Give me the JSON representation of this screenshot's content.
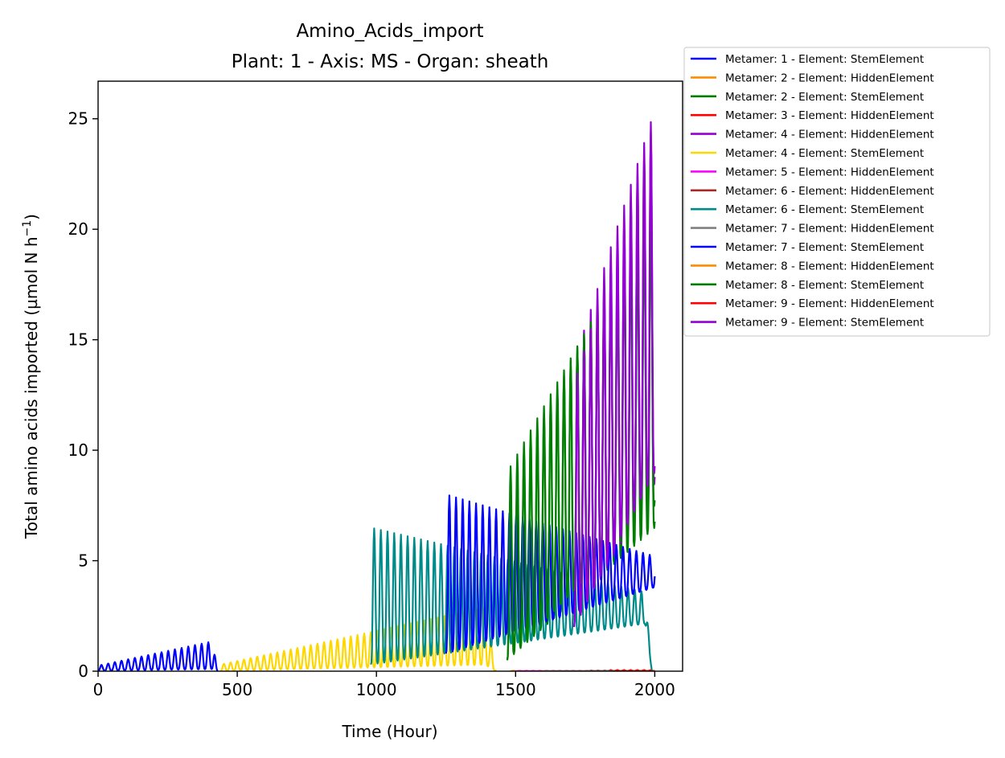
{
  "chart_data": {
    "type": "line",
    "title": "Amino_Acids_import",
    "subtitle": "Plant: 1 - Axis: MS - Organ: sheath",
    "xlabel": "Time (Hour)",
    "ylabel": "Total amino acids imported (µmol N h",
    "ylabel_sup": "−1",
    "ylabel_end": ")",
    "xlim": [
      0,
      2100
    ],
    "ylim": [
      0,
      26.7
    ],
    "xticks": [
      0,
      500,
      1000,
      1500,
      2000
    ],
    "yticks": [
      0,
      5,
      10,
      15,
      20,
      25
    ],
    "grid": false,
    "legend_position": "outside-top-right",
    "series": [
      {
        "name": "Metamer: 1 - Element: StemElement",
        "color": "#0000ff",
        "start": 0,
        "end": 430,
        "peak_start": 0.25,
        "peak_end": 1.4,
        "trough_start": 0.02,
        "trough_end": 0.1,
        "fade": 20
      },
      {
        "name": "Metamer: 2 - Element: HiddenElement",
        "color": "#ff8c00",
        "start": 1480,
        "end": 2000,
        "peak_start": 0.02,
        "peak_end": 0.02,
        "trough_start": 0,
        "trough_end": 0,
        "fade": 0
      },
      {
        "name": "Metamer: 2 - Element: StemElement",
        "color": "#008000",
        "start": 1470,
        "end": 2000,
        "peak_start": 8,
        "peak_end": 22,
        "trough_start": 0.5,
        "trough_end": 6.5,
        "fade": 0
      },
      {
        "name": "Metamer: 3 - Element: HiddenElement",
        "color": "#ff0000",
        "start": 1830,
        "end": 2000,
        "peak_start": 0.05,
        "peak_end": 0.05,
        "trough_start": 0,
        "trough_end": 0,
        "fade": 0
      },
      {
        "name": "Metamer: 4 - Element: HiddenElement",
        "color": "#9400d3",
        "start": 1710,
        "end": 2000,
        "peak_start": 14,
        "peak_end": 25.4,
        "trough_start": 2,
        "trough_end": 8.5,
        "fade": 0
      },
      {
        "name": "Metamer: 4 - Element: StemElement",
        "color": "#ffd700",
        "start": 440,
        "end": 1430,
        "peak_start": 0.3,
        "peak_end": 3.0,
        "trough_start": 0.02,
        "trough_end": 0.3,
        "fade": 40
      },
      {
        "name": "Metamer: 5 - Element: HiddenElement",
        "color": "#ff00ff",
        "start": 1500,
        "end": 2000,
        "peak_start": 0.01,
        "peak_end": 0.01,
        "trough_start": 0,
        "trough_end": 0,
        "fade": 0
      },
      {
        "name": "Metamer: 6 - Element: HiddenElement",
        "color": "#a52a2a",
        "start": 1760,
        "end": 2000,
        "peak_start": 0.03,
        "peak_end": 0.03,
        "trough_start": 0,
        "trough_end": 0,
        "fade": 0
      },
      {
        "name": "Metamer: 6 - Element: StemElement",
        "color": "#008b8b",
        "start": 980,
        "end": 1990,
        "peak_start": 6.5,
        "peak_end": 3.5,
        "trough_start": 0.3,
        "trough_end": 2.2,
        "fade": 25
      },
      {
        "name": "Metamer: 7 - Element: HiddenElement",
        "color": "#808080",
        "start": 1600,
        "end": 2000,
        "peak_start": 0.01,
        "peak_end": 0.01,
        "trough_start": 0,
        "trough_end": 0,
        "fade": 0
      },
      {
        "name": "Metamer: 7 - Element: StemElement",
        "color": "#0000ff",
        "start": 1250,
        "end": 2000,
        "peak_start": 8,
        "peak_end": 5.2,
        "trough_start": 0.8,
        "trough_end": 3.8,
        "fade": 0
      },
      {
        "name": "Metamer: 8 - Element: HiddenElement",
        "color": "#ff8c00",
        "start": 1850,
        "end": 2000,
        "peak_start": 0.02,
        "peak_end": 0.02,
        "trough_start": 0,
        "trough_end": 0,
        "fade": 0
      },
      {
        "name": "Metamer: 8 - Element: StemElement",
        "color": "#008000",
        "start": 1470,
        "end": 2000,
        "peak_start": 9,
        "peak_end": 21,
        "trough_start": 0.5,
        "trough_end": 7.5,
        "fade": 0
      },
      {
        "name": "Metamer: 9 - Element: HiddenElement",
        "color": "#ff0000",
        "start": 1850,
        "end": 2000,
        "peak_start": 0.03,
        "peak_end": 0.03,
        "trough_start": 0,
        "trough_end": 0,
        "fade": 0
      },
      {
        "name": "Metamer: 9 - Element: StemElement",
        "color": "#9400d3",
        "start": 1710,
        "end": 2000,
        "peak_start": 13,
        "peak_end": 25,
        "trough_start": 2,
        "trough_end": 9,
        "fade": 0
      }
    ]
  }
}
